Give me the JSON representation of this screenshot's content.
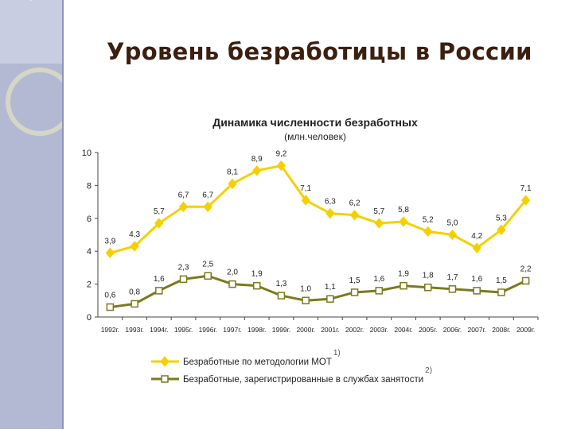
{
  "slide": {
    "title": "Уровень безработицы в России",
    "accent_color": "#b3b9d3"
  },
  "chart_data": {
    "type": "line",
    "title": "Динамика численности безработных",
    "subtitle": "(млн.человек)",
    "xlabel": "",
    "ylabel": "",
    "ylim": [
      0,
      10
    ],
    "yticks": [
      "0",
      "2",
      "4",
      "6",
      "8",
      "10"
    ],
    "grid": false,
    "legend_position": "bottom",
    "categories": [
      "1992г.",
      "1993г.",
      "1994г.",
      "1995г.",
      "1996г.",
      "1997г.",
      "1998г.",
      "1999г.",
      "2000г.",
      "2001г.",
      "2002г.",
      "2003г.",
      "2004г.",
      "2005г.",
      "2006г.",
      "2007г.",
      "2008г.",
      "2009г."
    ],
    "series": [
      {
        "name": "Безработные по методологии МОТ",
        "marker": "diamond",
        "color": "#f5d000",
        "note": "1)",
        "values": [
          3.9,
          4.3,
          5.7,
          6.7,
          6.7,
          8.1,
          8.9,
          9.2,
          7.1,
          6.3,
          6.2,
          5.7,
          5.8,
          5.2,
          5.0,
          4.2,
          5.3,
          7.1
        ],
        "labels": [
          "3,9",
          "4,3",
          "5,7",
          "6,7",
          "6,7",
          "8,1",
          "8,9",
          "9,2",
          "7,1",
          "6,3",
          "6,2",
          "5,7",
          "5,8",
          "5,2",
          "5,0",
          "4,2",
          "5,3",
          "7,1"
        ]
      },
      {
        "name": "Безработные, зарегистрированные в службах занятости",
        "marker": "square",
        "color": "#7a7a1f",
        "note": "2)",
        "values": [
          0.6,
          0.8,
          1.6,
          2.3,
          2.5,
          2.0,
          1.9,
          1.3,
          1.0,
          1.1,
          1.5,
          1.6,
          1.9,
          1.8,
          1.7,
          1.6,
          1.5,
          2.2
        ],
        "labels": [
          "0,6",
          "0,8",
          "1,6",
          "2,3",
          "2,5",
          "2,0",
          "1,9",
          "1,3",
          "1,0",
          "1,1",
          "1,5",
          "1,6",
          "1,9",
          "1,8",
          "1,7",
          "1,6",
          "1,5",
          "2,2"
        ]
      }
    ]
  }
}
